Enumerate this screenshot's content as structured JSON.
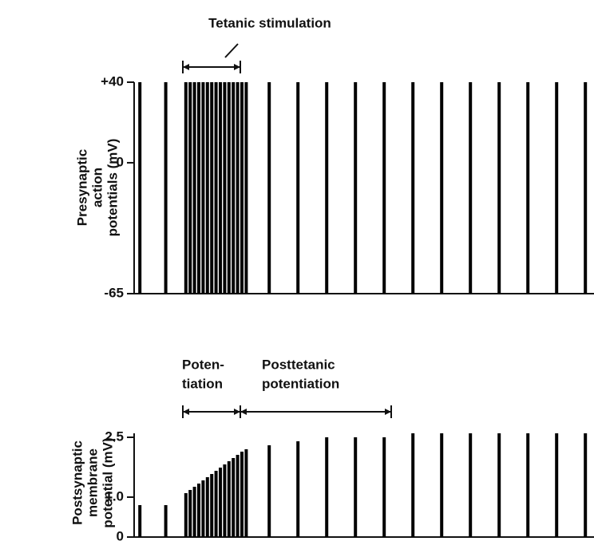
{
  "chart_data": [
    {
      "type": "spikes",
      "annotation": "Tetanic stimulation",
      "ylabel": [
        "Presynaptic",
        "action",
        "potentials (mV)"
      ],
      "x": [
        0.2,
        1.1,
        1.8,
        1.95,
        2.1,
        2.25,
        2.4,
        2.55,
        2.7,
        2.85,
        3.0,
        3.15,
        3.3,
        3.45,
        3.6,
        3.75,
        3.9,
        4.7,
        5.7,
        6.7,
        7.7,
        8.7,
        9.7,
        10.7,
        11.7,
        12.7,
        13.7,
        14.7,
        15.7
      ],
      "values": [
        40,
        40,
        40,
        40,
        40,
        40,
        40,
        40,
        40,
        40,
        40,
        40,
        40,
        40,
        40,
        40,
        40,
        40,
        40,
        40,
        40,
        40,
        40,
        40,
        40,
        40,
        40,
        40,
        40
      ],
      "color": "#000000",
      "xlim": [
        0,
        16
      ],
      "ylim": [
        -65,
        40
      ],
      "yticks": [
        {
          "value": 40,
          "label": "+40"
        },
        0,
        -65
      ]
    },
    {
      "type": "spikes",
      "annotations": [
        [
          "Poten-",
          "tiation"
        ],
        [
          "Posttetanic",
          "potentiation"
        ]
      ],
      "ylabel": [
        "Postsynaptic",
        "membrane",
        "potential (mV)"
      ],
      "x": [
        0.2,
        1.1,
        1.8,
        1.95,
        2.1,
        2.25,
        2.4,
        2.55,
        2.7,
        2.85,
        3.0,
        3.15,
        3.3,
        3.45,
        3.6,
        3.75,
        3.9,
        4.7,
        5.7,
        6.7,
        7.7,
        8.7,
        9.7,
        10.7,
        11.7,
        12.7,
        13.7,
        14.7,
        15.7
      ],
      "values": [
        0.8,
        0.8,
        1.1,
        1.18,
        1.26,
        1.34,
        1.42,
        1.5,
        1.58,
        1.66,
        1.74,
        1.82,
        1.9,
        1.98,
        2.06,
        2.14,
        2.2,
        2.3,
        2.4,
        2.5,
        2.5,
        2.5,
        2.6,
        2.6,
        2.6,
        2.6,
        2.6,
        2.6,
        2.6
      ],
      "color": "#000000",
      "xlim": [
        0,
        16
      ],
      "ylim": [
        0,
        2.6
      ],
      "yticks": [
        2.5,
        {
          "value": 1,
          "label": "1.0"
        },
        0
      ]
    }
  ]
}
